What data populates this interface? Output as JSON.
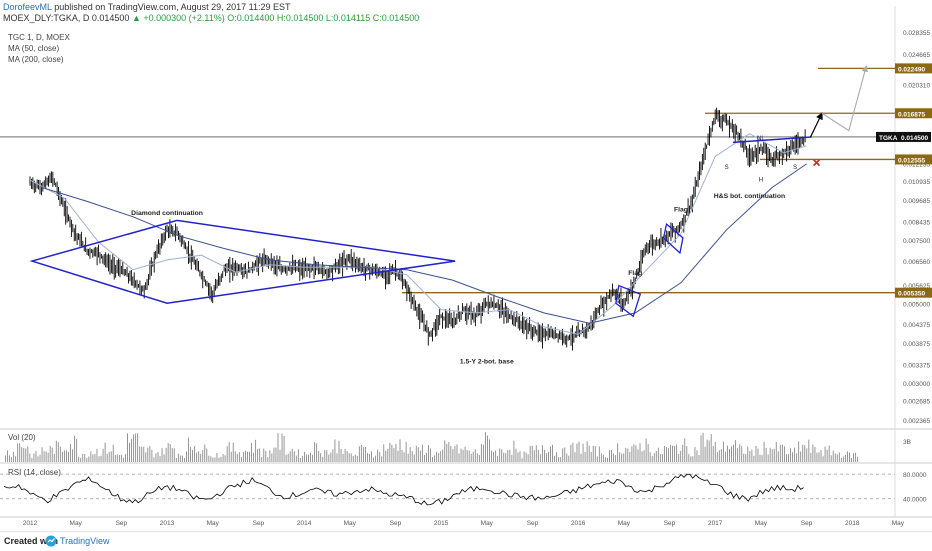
{
  "header": {
    "author": "DorofeevML",
    "published": "published on TradingView.com, August 29, 2017 11:29 EST",
    "symbol_line": "MOEX_DLY:TGKA, D",
    "last": "0.014500",
    "change": "+0.000300 (+2.11%)",
    "ohlc": "O:0.014400 H:0.014500 L:0.014115 C:0.014500"
  },
  "legend": {
    "title": "TGC 1, D, MOEX",
    "ma50": "MA (50, close)",
    "ma200": "MA (200, close)",
    "vol": "Vol (20)",
    "rsi": "RSI (14, close)"
  },
  "footer": {
    "created": "Created with",
    "brand": "TradingView"
  },
  "colors": {
    "price": "#000000",
    "ma50": "#9fb0d4",
    "ma200": "#3b4f8f",
    "pattern": "#2222cc",
    "level": "#8b6914",
    "label_bg": "#8b6914",
    "rsi": "#000000",
    "volume": "#8a8a8a",
    "target_arrow": "#aaaaaa"
  },
  "chart_data": {
    "type": "line",
    "scale": "log",
    "x_ticks": [
      "2012",
      "May",
      "Sep",
      "2013",
      "May",
      "Sep",
      "2014",
      "May",
      "Sep",
      "2015",
      "May",
      "Sep",
      "2016",
      "May",
      "Sep",
      "2017",
      "May",
      "Sep",
      "2018",
      "May"
    ],
    "y_ticks": [
      "0.028355",
      "0.024665",
      "0.020310",
      "0.017150",
      "0.014500",
      "0.012235",
      "0.010935",
      "0.009685",
      "0.008435",
      "0.007500",
      "0.006560",
      "0.005625",
      "0.005000",
      "0.004375",
      "0.003875",
      "0.003375",
      "0.003000",
      "0.002685",
      "0.002365"
    ],
    "ylim": [
      0.00225,
      0.0295
    ],
    "current_price": 0.0145,
    "current_label": "TGKA",
    "price_series": [
      [
        "2012-01",
        0.0108
      ],
      [
        "2012-02",
        0.0105
      ],
      [
        "2012-03",
        0.0112
      ],
      [
        "2012-04",
        0.0092
      ],
      [
        "2012-05",
        0.0078
      ],
      [
        "2012-06",
        0.007
      ],
      [
        "2012-07",
        0.0069
      ],
      [
        "2012-08",
        0.0064
      ],
      [
        "2012-09",
        0.0062
      ],
      [
        "2012-10",
        0.0058
      ],
      [
        "2012-11",
        0.0054
      ],
      [
        "2012-12",
        0.0068
      ],
      [
        "2013-01",
        0.008
      ],
      [
        "2013-02",
        0.0078
      ],
      [
        "2013-03",
        0.0068
      ],
      [
        "2013-04",
        0.006
      ],
      [
        "2013-05",
        0.0053
      ],
      [
        "2013-06",
        0.0062
      ],
      [
        "2013-07",
        0.0063
      ],
      [
        "2013-08",
        0.0061
      ],
      [
        "2013-09",
        0.0065
      ],
      [
        "2013-10",
        0.0066
      ],
      [
        "2013-11",
        0.0062
      ],
      [
        "2013-12",
        0.0063
      ],
      [
        "2014-01",
        0.0062
      ],
      [
        "2014-02",
        0.0063
      ],
      [
        "2014-03",
        0.0061
      ],
      [
        "2014-04",
        0.0064
      ],
      [
        "2014-05",
        0.0067
      ],
      [
        "2014-06",
        0.0063
      ],
      [
        "2014-07",
        0.0062
      ],
      [
        "2014-08",
        0.006
      ],
      [
        "2014-09",
        0.0062
      ],
      [
        "2014-10",
        0.0055
      ],
      [
        "2014-11",
        0.0047
      ],
      [
        "2014-12",
        0.0041
      ],
      [
        "2015-01",
        0.0046
      ],
      [
        "2015-02",
        0.0044
      ],
      [
        "2015-03",
        0.0048
      ],
      [
        "2015-04",
        0.0046
      ],
      [
        "2015-05",
        0.005
      ],
      [
        "2015-06",
        0.0049
      ],
      [
        "2015-07",
        0.0046
      ],
      [
        "2015-08",
        0.0044
      ],
      [
        "2015-09",
        0.0042
      ],
      [
        "2015-10",
        0.0041
      ],
      [
        "2015-11",
        0.0041
      ],
      [
        "2015-12",
        0.004
      ],
      [
        "2016-01",
        0.0041
      ],
      [
        "2016-02",
        0.0043
      ],
      [
        "2016-03",
        0.0049
      ],
      [
        "2016-04",
        0.0054
      ],
      [
        "2016-05",
        0.005
      ],
      [
        "2016-06",
        0.0058
      ],
      [
        "2016-07",
        0.0072
      ],
      [
        "2016-08",
        0.0074
      ],
      [
        "2016-09",
        0.0078
      ],
      [
        "2016-10",
        0.0082
      ],
      [
        "2016-11",
        0.0096
      ],
      [
        "2016-12",
        0.0128
      ],
      [
        "2017-01",
        0.0167
      ],
      [
        "2017-02",
        0.016
      ],
      [
        "2017-03",
        0.0148
      ],
      [
        "2017-04",
        0.0128
      ],
      [
        "2017-05",
        0.0135
      ],
      [
        "2017-06",
        0.0126
      ],
      [
        "2017-07",
        0.0132
      ],
      [
        "2017-08",
        0.0138
      ],
      [
        "2017-09",
        0.0145
      ]
    ],
    "ma50_series": [
      [
        "2012-01",
        0.011
      ],
      [
        "2012-04",
        0.0098
      ],
      [
        "2012-07",
        0.0074
      ],
      [
        "2012-10",
        0.0062
      ],
      [
        "2013-01",
        0.0066
      ],
      [
        "2013-04",
        0.0068
      ],
      [
        "2013-07",
        0.0061
      ],
      [
        "2013-10",
        0.0064
      ],
      [
        "2014-01",
        0.0063
      ],
      [
        "2014-04",
        0.0063
      ],
      [
        "2014-07",
        0.0063
      ],
      [
        "2014-10",
        0.006
      ],
      [
        "2015-01",
        0.0048
      ],
      [
        "2015-04",
        0.0047
      ],
      [
        "2015-07",
        0.0048
      ],
      [
        "2015-10",
        0.0043
      ],
      [
        "2016-01",
        0.0041
      ],
      [
        "2016-04",
        0.0049
      ],
      [
        "2016-07",
        0.0062
      ],
      [
        "2016-10",
        0.0078
      ],
      [
        "2017-01",
        0.0128
      ],
      [
        "2017-04",
        0.0148
      ],
      [
        "2017-07",
        0.0131
      ],
      [
        "2017-09",
        0.0137
      ]
    ],
    "ma200_series": [
      [
        "2012-02",
        0.0105
      ],
      [
        "2012-06",
        0.0096
      ],
      [
        "2012-10",
        0.0087
      ],
      [
        "2013-02",
        0.0077
      ],
      [
        "2013-06",
        0.0071
      ],
      [
        "2013-10",
        0.0066
      ],
      [
        "2014-02",
        0.0064
      ],
      [
        "2014-06",
        0.0063
      ],
      [
        "2014-10",
        0.0062
      ],
      [
        "2015-02",
        0.0058
      ],
      [
        "2015-06",
        0.0052
      ],
      [
        "2015-10",
        0.0047
      ],
      [
        "2016-02",
        0.0044
      ],
      [
        "2016-06",
        0.0047
      ],
      [
        "2016-10",
        0.0057
      ],
      [
        "2017-02",
        0.008
      ],
      [
        "2017-06",
        0.0105
      ],
      [
        "2017-09",
        0.0122
      ]
    ],
    "levels": [
      {
        "value": 0.02249,
        "label": "0.022490"
      },
      {
        "value": 0.016875,
        "label": "0.016875"
      },
      {
        "value": 0.012555,
        "label": "0.012555"
      },
      {
        "value": 0.00535,
        "label": "0.005350"
      }
    ],
    "annotations": [
      {
        "text": "Diamond continuation",
        "x": "2013-01",
        "y": 0.0088
      },
      {
        "text": "Flag",
        "x": "2016-06",
        "y": 0.006
      },
      {
        "text": "Flag",
        "x": "2016-10",
        "y": 0.009
      },
      {
        "text": "H&S bot. continuation",
        "x": "2017-04",
        "y": 0.0098
      },
      {
        "text": "1.5-Y 2-bot. base",
        "x": "2015-05",
        "y": 0.0034
      },
      {
        "text": "NL",
        "x": "2017-05",
        "y": 0.0142
      },
      {
        "text": "S",
        "x": "2017-02",
        "y": 0.0118
      },
      {
        "text": "H",
        "x": "2017-05",
        "y": 0.0109
      },
      {
        "text": "S",
        "x": "2017-08",
        "y": 0.0118
      }
    ],
    "rsi": {
      "levels": [
        "80.0000",
        "40.0000"
      ],
      "level_values": [
        80,
        40
      ],
      "series": [
        58,
        62,
        45,
        38,
        50,
        66,
        72,
        55,
        40,
        35,
        48,
        60,
        55,
        42,
        38,
        52,
        63,
        70,
        58,
        44,
        46,
        55,
        50,
        47,
        52,
        56,
        49,
        45,
        40,
        30,
        35,
        48,
        55,
        58,
        50,
        45,
        42,
        40,
        46,
        52,
        60,
        65,
        70,
        58,
        50,
        62,
        72,
        80,
        68,
        60,
        45,
        40,
        52,
        58,
        55,
        60
      ]
    },
    "volume": {
      "axis_label": "3B",
      "bars": [
        0.4,
        0.7,
        0.3,
        0.5,
        0.6,
        0.8,
        0.35,
        0.45,
        0.55,
        0.3,
        0.9,
        0.5,
        0.4,
        0.6,
        0.35,
        0.7,
        0.5,
        0.3,
        0.55,
        0.45,
        0.65,
        0.4,
        0.8,
        0.5,
        0.35,
        0.6,
        0.45,
        0.7,
        0.3,
        0.5,
        0.4,
        0.6,
        0.75,
        0.45,
        0.55,
        0.35,
        0.65,
        0.5,
        0.4,
        0.85,
        0.45,
        0.6,
        0.3,
        0.5,
        0.7,
        0.4,
        0.55,
        0.65,
        0.45,
        0.35,
        0.6,
        0.5,
        0.75,
        0.4,
        0.55,
        0.65,
        0.5,
        0.9,
        0.6,
        0.7,
        0.5,
        0.45,
        0.6,
        0.55,
        0.4,
        0.65,
        0.5,
        0.45,
        0.35,
        0.3
      ]
    },
    "grid": false
  }
}
